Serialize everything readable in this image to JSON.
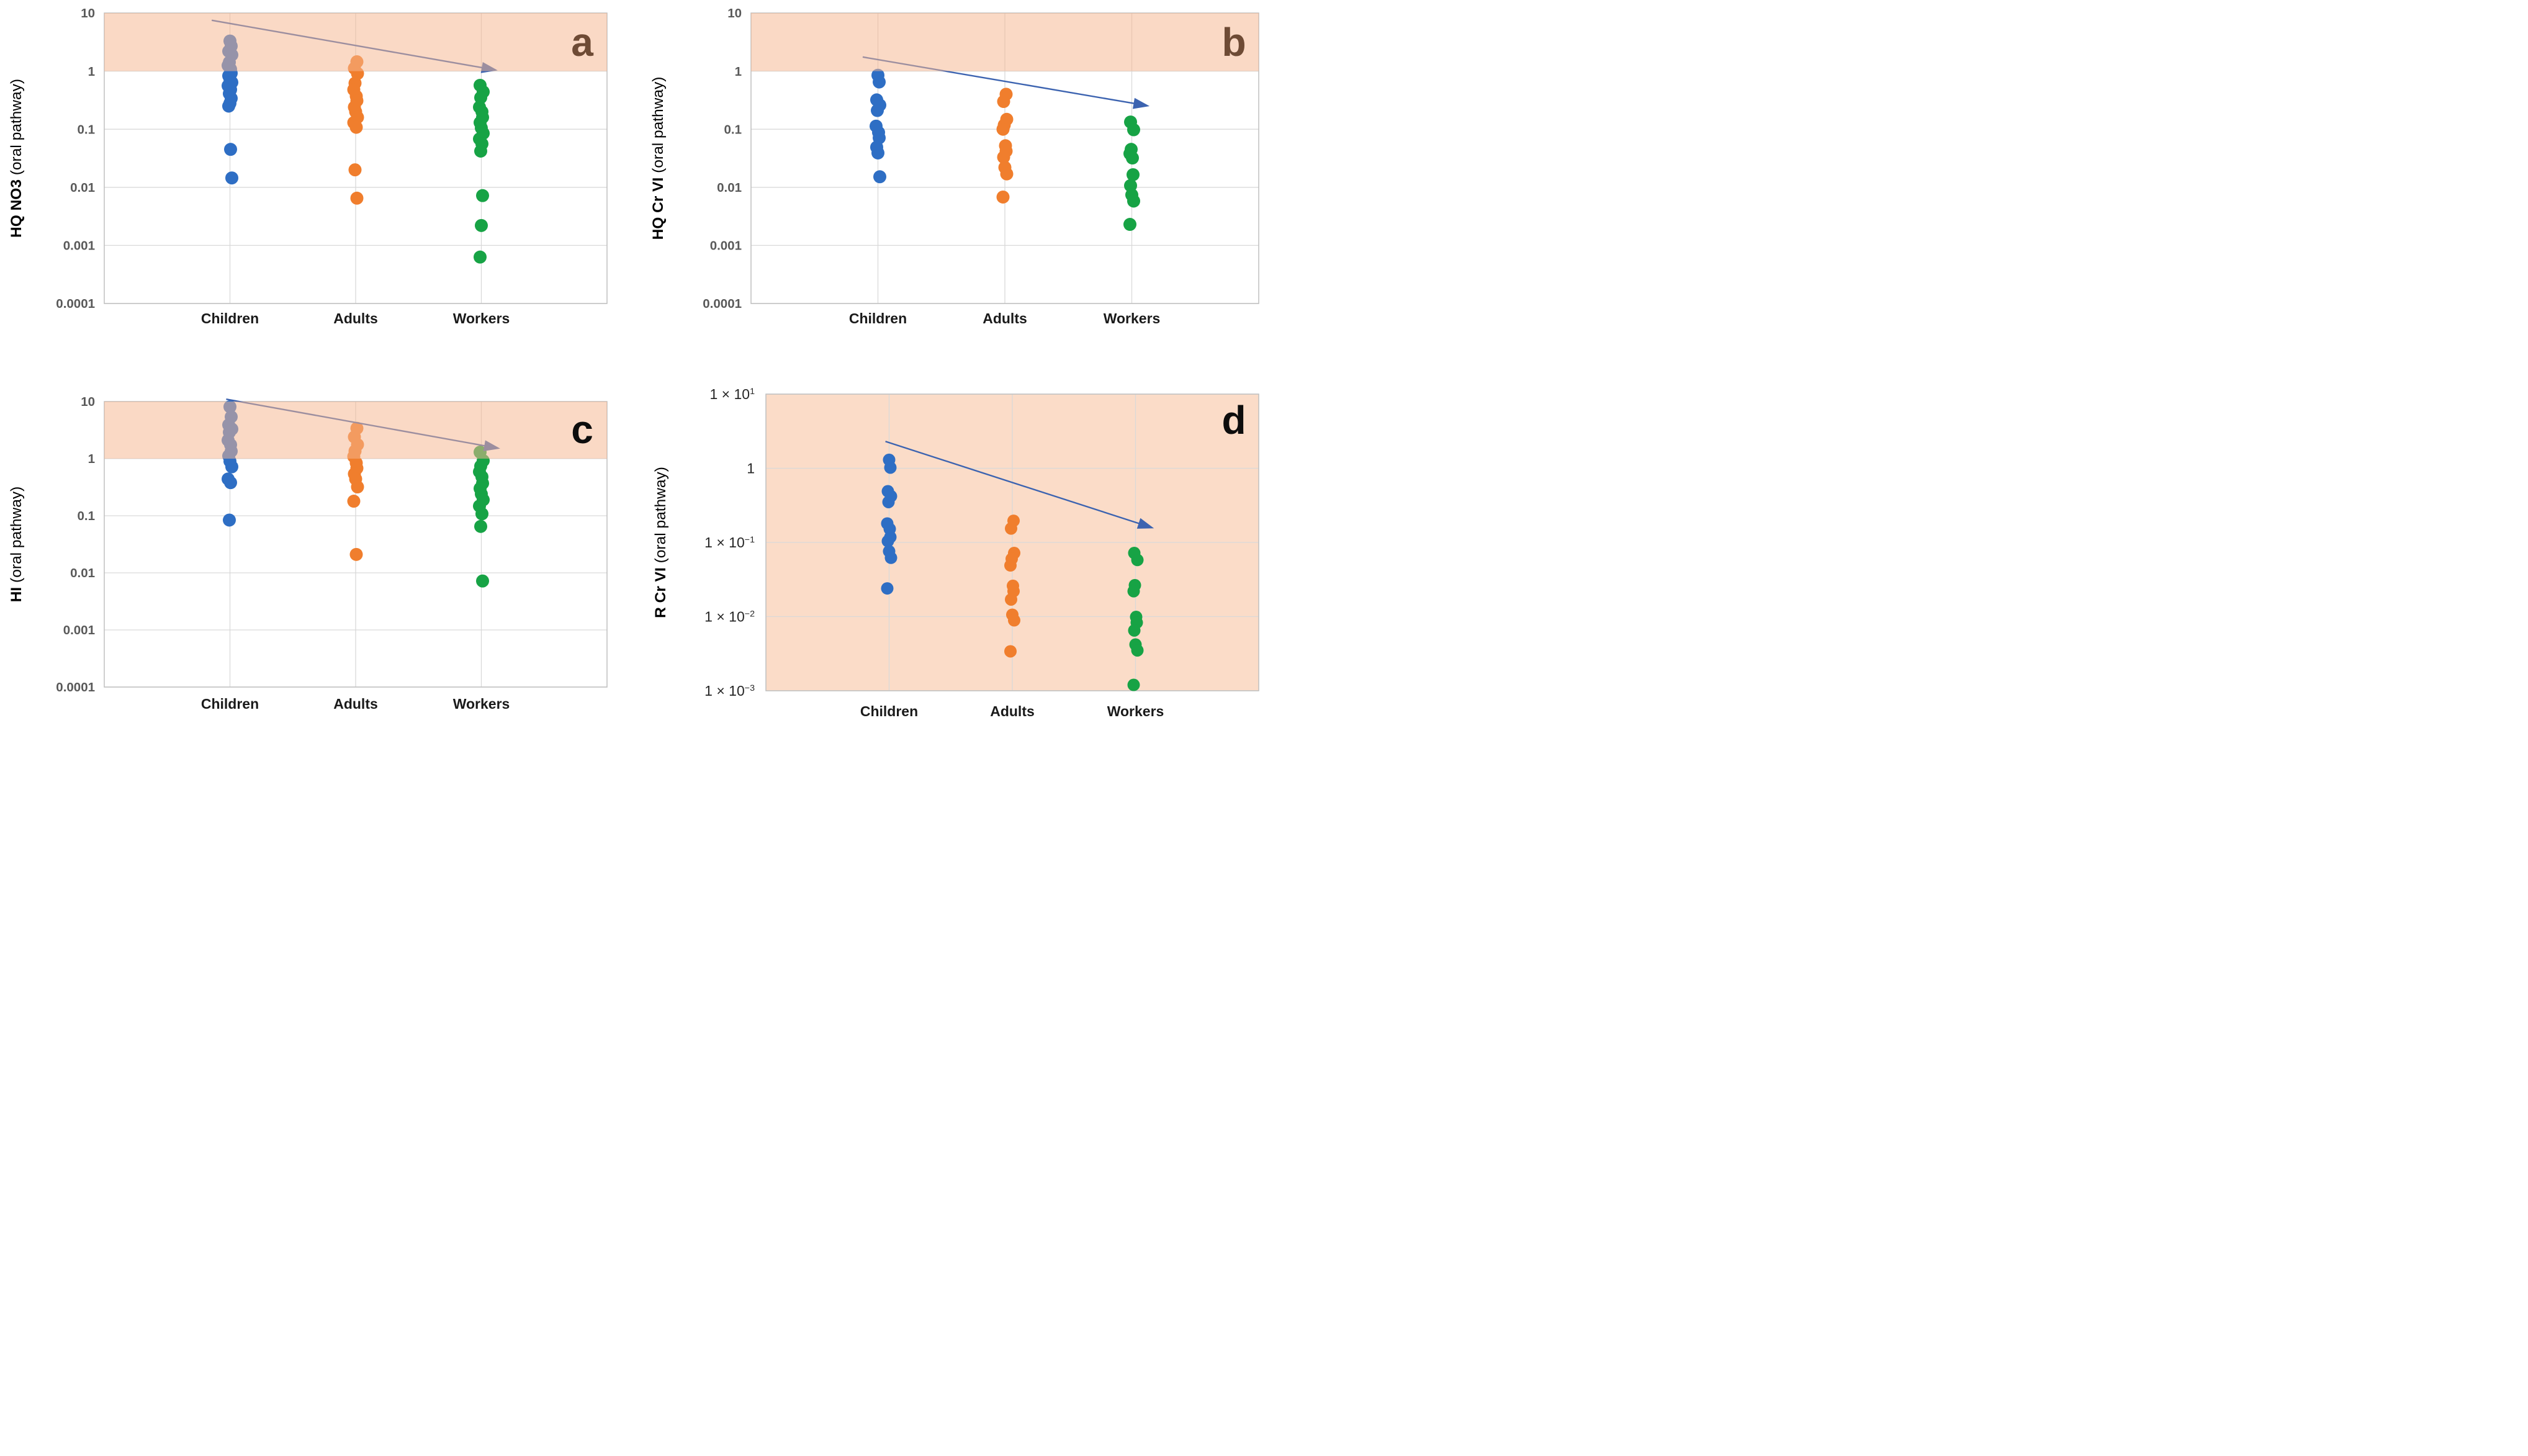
{
  "chart_data": {
    "type": "scatter",
    "subtype": "log-strip-plot-grid",
    "grid": "2x2 panels",
    "shared_categories": [
      "Children",
      "Adults",
      "Workers"
    ],
    "colors": {
      "children_points": "#2E6EC4",
      "adults_points": "#F07E2D",
      "workers_points": "#17A345",
      "trend_arrow": "#3C63B0",
      "threshold_band_overlay": "rgba(246,183,143,0.52)",
      "band_flat": "#FBDCC8",
      "gridline": "#D9D9D9",
      "plot_border": "#BFBFBF",
      "tick_label": "#595959",
      "tick_label_d": "#262626",
      "category_label": "#1a1a1a"
    },
    "panels": [
      {
        "id": "a",
        "letter": "a",
        "letter_color": "#6E4B35",
        "y_axis": {
          "title_bold": "HQ NO3",
          "title_regular": " (oral pathway)",
          "ticks": [
            "10",
            "1",
            "0.1",
            "0.01",
            "0.001",
            "0.0001"
          ],
          "min": 0.0001,
          "max": 10,
          "scale": "log"
        },
        "x_axis": {
          "categories": [
            "Children",
            "Adults",
            "Workers"
          ]
        },
        "threshold_band": {
          "from": 1,
          "to": 10
        },
        "grid_on": true,
        "series": [
          {
            "name": "Children",
            "color": "#2E6EC4",
            "values": [
              3.3,
              2.7,
              2.2,
              1.9,
              1.42,
              1.25,
              1.08,
              0.92,
              0.83,
              0.73,
              0.64,
              0.56,
              0.48,
              0.41,
              0.34,
              0.28,
              0.25,
              0.045,
              0.0145
            ]
          },
          {
            "name": "Adults",
            "color": "#F07E2D",
            "values": [
              1.45,
              1.12,
              0.91,
              0.62,
              0.48,
              0.37,
              0.31,
              0.24,
              0.2,
              0.16,
              0.13,
              0.108,
              0.02,
              0.0065
            ]
          },
          {
            "name": "Workers",
            "color": "#17A345",
            "values": [
              0.57,
              0.44,
              0.35,
              0.24,
              0.2,
              0.16,
              0.13,
              0.105,
              0.085,
              0.068,
              0.056,
              0.042,
              0.0072,
              0.0022,
              0.00063
            ]
          }
        ],
        "trend_arrow": {
          "from_cat": 0.855,
          "from_val": 7.5,
          "to_cat": 3.13,
          "to_val": 1.03,
          "color": "#3C63B0"
        }
      },
      {
        "id": "b",
        "letter": "b",
        "letter_color": "#6E4B35",
        "y_axis": {
          "title_bold": "HQ Cr VI",
          "title_regular": " (oral pathway)",
          "ticks": [
            "10",
            "1",
            "0.1",
            "0.01",
            "0.001",
            "0.0001"
          ],
          "min": 0.0001,
          "max": 10,
          "scale": "log"
        },
        "x_axis": {
          "categories": [
            "Children",
            "Adults",
            "Workers"
          ]
        },
        "threshold_band": {
          "from": 1,
          "to": 10
        },
        "grid_on": true,
        "series": [
          {
            "name": "Children",
            "color": "#2E6EC4",
            "values": [
              0.85,
              0.65,
              0.32,
              0.26,
              0.21,
              0.113,
              0.088,
              0.071,
              0.049,
              0.039,
              0.0152
            ]
          },
          {
            "name": "Adults",
            "color": "#F07E2D",
            "values": [
              0.4,
              0.3,
              0.148,
              0.118,
              0.1,
              0.052,
              0.042,
              0.033,
              0.022,
              0.017,
              0.0068
            ]
          },
          {
            "name": "Workers",
            "color": "#17A345",
            "values": [
              0.133,
              0.098,
              0.045,
              0.038,
              0.032,
              0.0165,
              0.0107,
              0.0074,
              0.0058,
              0.0023
            ]
          }
        ],
        "trend_arrow": {
          "from_cat": 0.88,
          "from_val": 1.75,
          "to_cat": 3.14,
          "to_val": 0.25,
          "color": "#3C63B0"
        }
      },
      {
        "id": "c",
        "letter": "c",
        "letter_color": "#0D0D0D",
        "y_axis": {
          "title_bold": "HI",
          "title_regular": " (oral pathway)",
          "ticks": [
            "10",
            "1",
            "0.1",
            "0.01",
            "0.001",
            "0.0001"
          ],
          "min": 0.0001,
          "max": 10,
          "scale": "log"
        },
        "x_axis": {
          "categories": [
            "Children",
            "Adults",
            "Workers"
          ]
        },
        "threshold_band": {
          "from": 1,
          "to": 10
        },
        "grid_on": true,
        "series": [
          {
            "name": "Children",
            "color": "#2E6EC4",
            "values": [
              8.1,
              5.4,
              3.9,
              3.3,
              2.9,
              2.1,
              1.75,
              1.35,
              1.12,
              0.9,
              0.72,
              0.44,
              0.38,
              0.084
            ]
          },
          {
            "name": "Adults",
            "color": "#F07E2D",
            "values": [
              3.4,
              2.4,
              1.76,
              1.36,
              1.09,
              0.84,
              0.68,
              0.54,
              0.44,
              0.32,
              0.18,
              0.021
            ]
          },
          {
            "name": "Workers",
            "color": "#17A345",
            "values": [
              1.3,
              0.92,
              0.74,
              0.59,
              0.48,
              0.37,
              0.3,
              0.24,
              0.19,
              0.148,
              0.108,
              0.065,
              0.0072
            ]
          }
        ],
        "trend_arrow": {
          "from_cat": 0.97,
          "from_val": 11.0,
          "to_cat": 3.15,
          "to_val": 1.5,
          "color": "#3C63B0"
        }
      },
      {
        "id": "d",
        "letter": "d",
        "letter_color": "#0D0D0D",
        "y_axis": {
          "title_bold": "R Cr VI",
          "title_regular": " (oral pathway)",
          "ticks": [
            "1 × 10^1",
            "1",
            "1 × 10^−1",
            "1 × 10^−2",
            "1 × 10^−3"
          ],
          "min": 0.001,
          "max": 10,
          "scale": "log"
        },
        "x_axis": {
          "categories": [
            "Children",
            "Adults",
            "Workers"
          ]
        },
        "threshold_band": {
          "from": 0.001,
          "to": 10
        },
        "grid_on": true,
        "series": [
          {
            "name": "Children",
            "color": "#2E6EC4",
            "values": [
              1.3,
              1.02,
              0.49,
              0.42,
              0.35,
              0.18,
              0.152,
              0.118,
              0.104,
              0.076,
              0.062,
              0.024
            ]
          },
          {
            "name": "Adults",
            "color": "#F07E2D",
            "values": [
              0.196,
              0.154,
              0.072,
              0.06,
              0.049,
              0.026,
              0.022,
              0.017,
              0.0106,
              0.0089,
              0.0034
            ]
          },
          {
            "name": "Workers",
            "color": "#17A345",
            "values": [
              0.072,
              0.058,
              0.0265,
              0.022,
              0.0099,
              0.0083,
              0.0065,
              0.0042,
              0.0035,
              0.0012
            ]
          }
        ],
        "trend_arrow": {
          "from_cat": 0.97,
          "from_val": 2.3,
          "to_cat": 3.15,
          "to_val": 0.155,
          "color": "#3C63B0"
        }
      }
    ]
  }
}
